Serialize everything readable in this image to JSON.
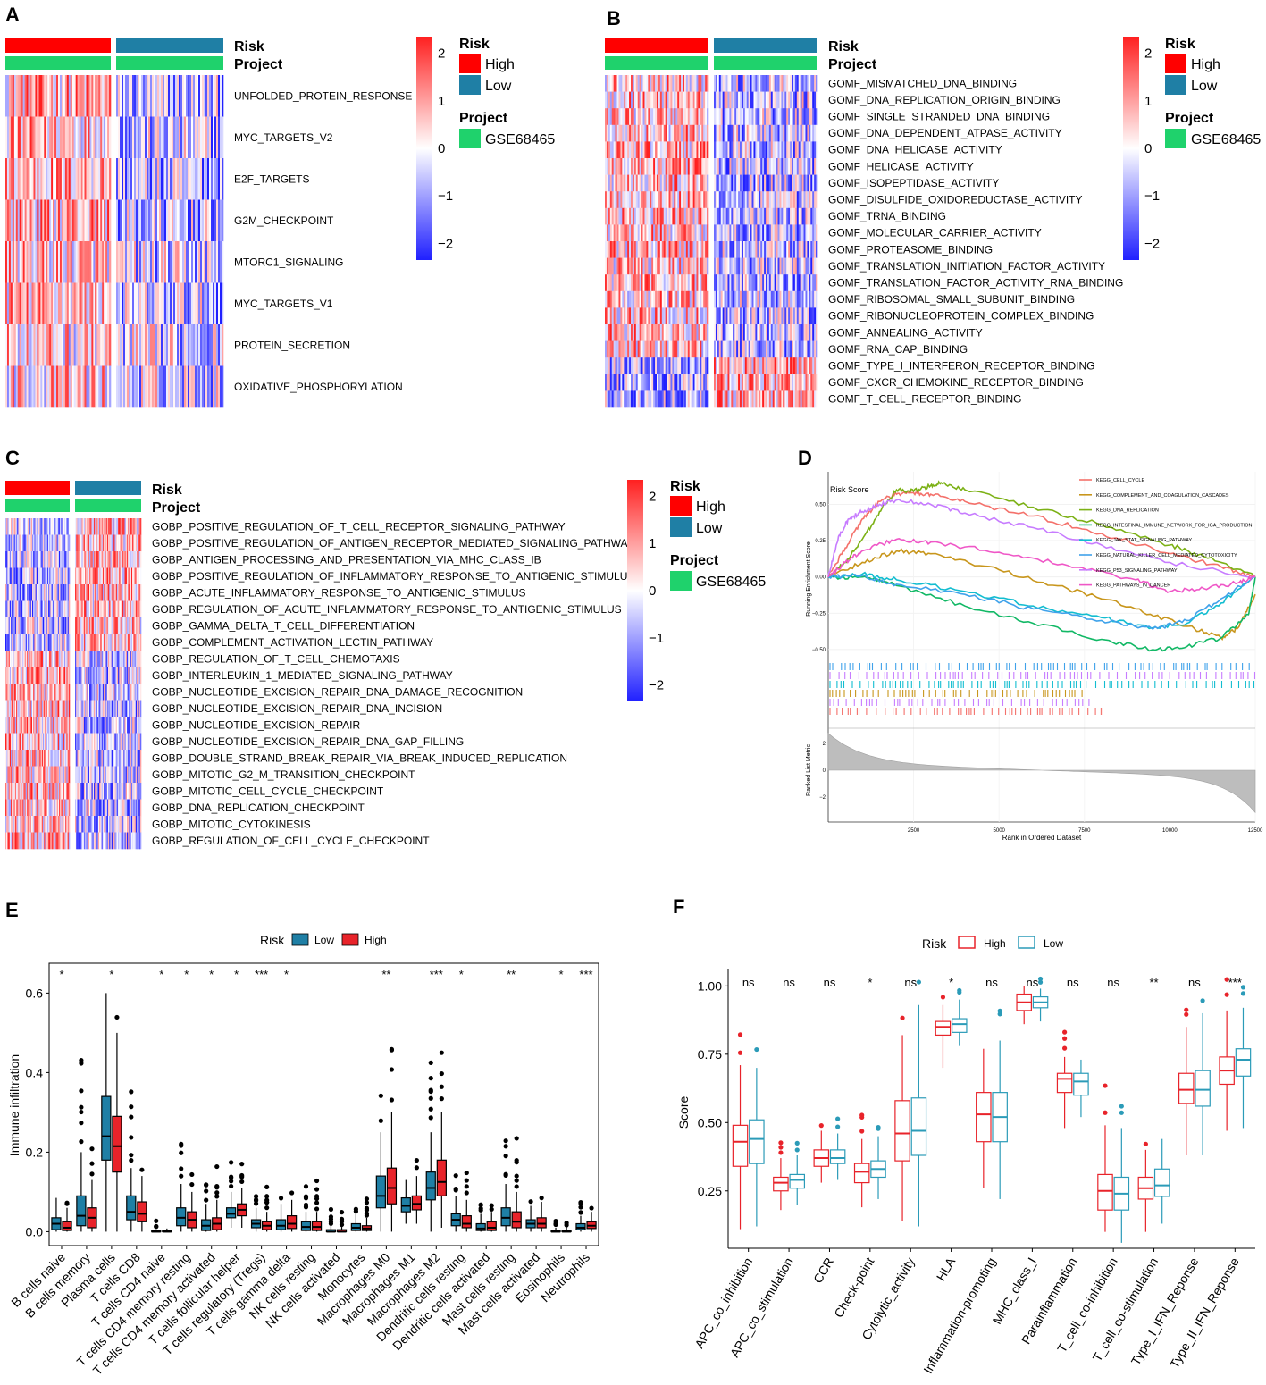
{
  "colors": {
    "high": "#ff0000",
    "low": "#1f7fa5",
    "project": "#1fd26c",
    "scale_high": "#ff2020",
    "scale_mid": "#ffffff",
    "scale_low": "#2020ff",
    "high_box": "#e8232a",
    "low_box": "#2b9bb8"
  },
  "legend": {
    "risk_title": "Risk",
    "high": "High",
    "low": "Low",
    "project_title": "Project",
    "project_value": "GSE68465"
  },
  "heat_scale_ticks": [
    "2",
    "1",
    "0",
    "−1",
    "−2"
  ],
  "panels": {
    "A": {
      "label": "A",
      "annotation_rows": [
        "Risk",
        "Project"
      ],
      "pathways": [
        "UNFOLDED_PROTEIN_RESPONSE",
        "MYC_TARGETS_V2",
        "E2F_TARGETS",
        "G2M_CHECKPOINT",
        "MTORC1_SIGNALING",
        "MYC_TARGETS_V1",
        "PROTEIN_SECRETION",
        "OXIDATIVE_PHOSPHORYLATION"
      ]
    },
    "B": {
      "label": "B",
      "annotation_rows": [
        "Risk",
        "Project"
      ],
      "pathways": [
        "GOMF_MISMATCHED_DNA_BINDING",
        "GOMF_DNA_REPLICATION_ORIGIN_BINDING",
        "GOMF_SINGLE_STRANDED_DNA_BINDING",
        "GOMF_DNA_DEPENDENT_ATPASE_ACTIVITY",
        "GOMF_DNA_HELICASE_ACTIVITY",
        "GOMF_HELICASE_ACTIVITY",
        "GOMF_ISOPEPTIDASE_ACTIVITY",
        "GOMF_DISULFIDE_OXIDOREDUCTASE_ACTIVITY",
        "GOMF_TRNA_BINDING",
        "GOMF_MOLECULAR_CARRIER_ACTIVITY",
        "GOMF_PROTEASOME_BINDING",
        "GOMF_TRANSLATION_INITIATION_FACTOR_ACTIVITY",
        "GOMF_TRANSLATION_FACTOR_ACTIVITY_RNA_BINDING",
        "GOMF_RIBOSOMAL_SMALL_SUBUNIT_BINDING",
        "GOMF_RIBONUCLEOPROTEIN_COMPLEX_BINDING",
        "GOMF_ANNEALING_ACTIVITY",
        "GOMF_RNA_CAP_BINDING",
        "GOMF_TYPE_I_INTERFERON_RECEPTOR_BINDING",
        "GOMF_CXCR_CHEMOKINE_RECEPTOR_BINDING",
        "GOMF_T_CELL_RECEPTOR_BINDING"
      ]
    },
    "C": {
      "label": "C",
      "annotation_rows": [
        "Risk",
        "Project"
      ],
      "pathways": [
        "GOBP_POSITIVE_REGULATION_OF_T_CELL_RECEPTOR_SIGNALING_PATHWAY",
        "GOBP_POSITIVE_REGULATION_OF_ANTIGEN_RECEPTOR_MEDIATED_SIGNALING_PATHWAY",
        "GOBP_ANTIGEN_PROCESSING_AND_PRESENTATION_VIA_MHC_CLASS_IB",
        "GOBP_POSITIVE_REGULATION_OF_INFLAMMATORY_RESPONSE_TO_ANTIGENIC_STIMULUS",
        "GOBP_ACUTE_INFLAMMATORY_RESPONSE_TO_ANTIGENIC_STIMULUS",
        "GOBP_REGULATION_OF_ACUTE_INFLAMMATORY_RESPONSE_TO_ANTIGENIC_STIMULUS",
        "GOBP_GAMMA_DELTA_T_CELL_DIFFERENTIATION",
        "GOBP_COMPLEMENT_ACTIVATION_LECTIN_PATHWAY",
        "GOBP_REGULATION_OF_T_CELL_CHEMOTAXIS",
        "GOBP_INTERLEUKIN_1_MEDIATED_SIGNALING_PATHWAY",
        "GOBP_NUCLEOTIDE_EXCISION_REPAIR_DNA_DAMAGE_RECOGNITION",
        "GOBP_NUCLEOTIDE_EXCISION_REPAIR_DNA_INCISION",
        "GOBP_NUCLEOTIDE_EXCISION_REPAIR",
        "GOBP_NUCLEOTIDE_EXCISION_REPAIR_DNA_GAP_FILLING",
        "GOBP_DOUBLE_STRAND_BREAK_REPAIR_VIA_BREAK_INDUCED_REPLICATION",
        "GOBP_MITOTIC_G2_M_TRANSITION_CHECKPOINT",
        "GOBP_MITOTIC_CELL_CYCLE_CHECKPOINT",
        "GOBP_DNA_REPLICATION_CHECKPOINT",
        "GOBP_MITOTIC_CYTOKINESIS",
        "GOBP_REGULATION_OF_CELL_CYCLE_CHECKPOINT"
      ]
    },
    "D": {
      "label": "D",
      "title": "Risk Score",
      "ylabel_top": "Running Enrichment Score",
      "ylabel_bottom": "Ranked List Metric",
      "xlabel": "Rank in Ordered Dataset",
      "es_ticks": [
        "0.50",
        "0.25",
        "0.00",
        "−0.25",
        "−0.50"
      ],
      "metric_ticks": [
        "2",
        "0",
        "−2"
      ],
      "x_ticks": [
        "2500",
        "5000",
        "7500",
        "10000",
        "12500"
      ]
    },
    "E": {
      "label": "E",
      "legend_title": "Risk",
      "legend_items": [
        "Low",
        "High"
      ],
      "ylabel": "Immune infiltration",
      "y_ticks": [
        "0.0",
        "0.2",
        "0.4",
        "0.6"
      ]
    },
    "F": {
      "label": "F",
      "legend_title": "Risk",
      "legend_items": [
        "High",
        "Low"
      ],
      "ylabel": "Score",
      "y_ticks": [
        "0.25",
        "0.50",
        "0.75",
        "1.00"
      ]
    }
  },
  "chart_data": [
    {
      "type": "line",
      "panel": "D",
      "title": "Risk Score",
      "xlabel": "Rank in Ordered Dataset",
      "ylabel": "Running Enrichment Score",
      "xlim": [
        0,
        12500
      ],
      "ylim": [
        -0.55,
        0.62
      ],
      "series": [
        {
          "name": "KEGG_CELL_CYCLE",
          "color": "#f4716b",
          "x": [
            0,
            500,
            1000,
            1500,
            2000,
            2500,
            3000,
            4000,
            6000,
            8000,
            10000,
            11500,
            12500
          ],
          "y": [
            0,
            0.2,
            0.4,
            0.52,
            0.57,
            0.58,
            0.57,
            0.52,
            0.42,
            0.3,
            0.16,
            0.07,
            0
          ]
        },
        {
          "name": "KEGG_COMPLEMENT_AND_COAGULATION_CASCADES",
          "color": "#c8961c",
          "x": [
            0,
            1000,
            2000,
            3000,
            5000,
            7000,
            9000,
            10500,
            11500,
            12000,
            12500
          ],
          "y": [
            0,
            0.1,
            0.18,
            0.16,
            0.05,
            -0.08,
            -0.22,
            -0.34,
            -0.42,
            -0.35,
            -0.12
          ]
        },
        {
          "name": "KEGG_DNA_REPLICATION",
          "color": "#7cb116",
          "x": [
            0,
            500,
            1000,
            1500,
            2000,
            2500,
            3000,
            3300,
            4000,
            6000,
            8000,
            10000,
            11000,
            12500
          ],
          "y": [
            0,
            0.1,
            0.26,
            0.45,
            0.6,
            0.59,
            0.63,
            0.65,
            0.6,
            0.48,
            0.36,
            0.22,
            0.14,
            0
          ]
        },
        {
          "name": "KEGG_INTESTINAL_IMMUNE_NETWORK_FOR_IGA_PRODUCTION",
          "color": "#11b865",
          "x": [
            0,
            1000,
            2000,
            4000,
            6000,
            8000,
            9500,
            10500,
            11500,
            12300,
            12500
          ],
          "y": [
            0,
            0.0,
            -0.06,
            -0.2,
            -0.32,
            -0.43,
            -0.5,
            -0.48,
            -0.42,
            -0.26,
            0
          ]
        },
        {
          "name": "KEGG_JAK_STAT_SIGNALING_PATHWAY",
          "color": "#12bdd0",
          "x": [
            0,
            1000,
            2000,
            4000,
            6000,
            8000,
            9500,
            10500,
            11500,
            12500
          ],
          "y": [
            0,
            0.02,
            -0.02,
            -0.1,
            -0.2,
            -0.28,
            -0.35,
            -0.32,
            -0.18,
            0
          ]
        },
        {
          "name": "KEGG_NATURAL_KILLER_CELL_MEDIATED_CYTOTOXICITY",
          "color": "#3fa2ea",
          "x": [
            0,
            1000,
            2000,
            4000,
            6000,
            8000,
            9500,
            10500,
            11500,
            12500
          ],
          "y": [
            0,
            0.01,
            -0.05,
            -0.12,
            -0.22,
            -0.3,
            -0.36,
            -0.3,
            -0.15,
            0
          ]
        },
        {
          "name": "KEGG_P53_SIGNALING_PATHWAY",
          "color": "#c77cff",
          "x": [
            0,
            300,
            600,
            1000,
            1500,
            2000,
            3000,
            4000,
            6000,
            8000,
            10000,
            12500
          ],
          "y": [
            0,
            0.28,
            0.4,
            0.45,
            0.5,
            0.53,
            0.5,
            0.44,
            0.34,
            0.22,
            0.1,
            0
          ]
        },
        {
          "name": "KEGG_PATHWAYS_IN_CANCER",
          "color": "#ef57c7",
          "x": [
            0,
            500,
            1000,
            2000,
            3000,
            5000,
            7000,
            9000,
            10000,
            11000,
            12000,
            12500
          ],
          "y": [
            0,
            0.1,
            0.18,
            0.26,
            0.24,
            0.17,
            0.08,
            -0.02,
            -0.1,
            -0.08,
            -0.04,
            0
          ]
        }
      ]
    },
    {
      "type": "box",
      "panel": "E",
      "ylabel": "Immune infiltration",
      "ylim": [
        0,
        0.65
      ],
      "groups": [
        "Low",
        "High"
      ],
      "categories": [
        "B cells naive",
        "B cells memory",
        "Plasma cells",
        "T cells CD8",
        "T cells CD4 naive",
        "T cells CD4 memory resting",
        "T cells CD4 memory activated",
        "T cells follicular helper",
        "T cells regulatory (Tregs)",
        "T cells gamma delta",
        "NK cells resting",
        "NK cells activated",
        "Monocytes",
        "Macrophages M0",
        "Macrophages M1",
        "Macrophages M2",
        "Dendritic cells resting",
        "Dendritic cells activated",
        "Mast cells resting",
        "Mast cells activated",
        "Eosinophils",
        "Neutrophils"
      ],
      "significance": [
        "*",
        "",
        "*",
        "",
        "*",
        "*",
        "*",
        "*",
        "***",
        "*",
        "",
        "",
        "",
        "**",
        "",
        "***",
        "*",
        "",
        "**",
        "",
        "*",
        "***"
      ],
      "low": [
        [
          0,
          0.005,
          0.02,
          0.035,
          0.085
        ],
        [
          0,
          0.015,
          0.04,
          0.09,
          0.2
        ],
        [
          0,
          0.18,
          0.24,
          0.34,
          0.6
        ],
        [
          0,
          0.03,
          0.05,
          0.09,
          0.16
        ],
        [
          0,
          0,
          0,
          0.002,
          0.005
        ],
        [
          0,
          0.015,
          0.035,
          0.06,
          0.12
        ],
        [
          0,
          0.003,
          0.015,
          0.03,
          0.07
        ],
        [
          0.01,
          0.035,
          0.045,
          0.06,
          0.1
        ],
        [
          0,
          0.01,
          0.02,
          0.03,
          0.06
        ],
        [
          0,
          0.005,
          0.015,
          0.03,
          0.07
        ],
        [
          0,
          0.003,
          0.012,
          0.025,
          0.05
        ],
        [
          0,
          0,
          0,
          0.005,
          0.015
        ],
        [
          0,
          0.003,
          0.01,
          0.02,
          0.045
        ],
        [
          0,
          0.06,
          0.09,
          0.14,
          0.25
        ],
        [
          0.02,
          0.05,
          0.065,
          0.085,
          0.13
        ],
        [
          0,
          0.08,
          0.11,
          0.15,
          0.25
        ],
        [
          0,
          0.015,
          0.03,
          0.045,
          0.09
        ],
        [
          0,
          0.003,
          0.008,
          0.02,
          0.045
        ],
        [
          0,
          0.015,
          0.035,
          0.06,
          0.12
        ],
        [
          0,
          0.01,
          0.02,
          0.03,
          0.065
        ],
        [
          0,
          0,
          0,
          0.002,
          0.01
        ],
        [
          0,
          0.005,
          0.01,
          0.02,
          0.04
        ]
      ],
      "high": [
        [
          0,
          0.003,
          0.01,
          0.025,
          0.06
        ],
        [
          0,
          0.01,
          0.035,
          0.06,
          0.13
        ],
        [
          0,
          0.15,
          0.215,
          0.29,
          0.5
        ],
        [
          0,
          0.025,
          0.045,
          0.075,
          0.14
        ],
        [
          0,
          0,
          0,
          0.003,
          0.008
        ],
        [
          0,
          0.01,
          0.03,
          0.05,
          0.1
        ],
        [
          0,
          0.005,
          0.02,
          0.035,
          0.08
        ],
        [
          0.01,
          0.04,
          0.055,
          0.07,
          0.11
        ],
        [
          0,
          0.005,
          0.015,
          0.025,
          0.05
        ],
        [
          0,
          0.008,
          0.02,
          0.04,
          0.08
        ],
        [
          0,
          0.003,
          0.012,
          0.025,
          0.05
        ],
        [
          0,
          0,
          0,
          0.005,
          0.012
        ],
        [
          0,
          0.003,
          0.008,
          0.015,
          0.035
        ],
        [
          0,
          0.07,
          0.11,
          0.16,
          0.3
        ],
        [
          0.02,
          0.055,
          0.07,
          0.09,
          0.14
        ],
        [
          0.01,
          0.09,
          0.125,
          0.18,
          0.3
        ],
        [
          0,
          0.01,
          0.02,
          0.04,
          0.08
        ],
        [
          0,
          0.003,
          0.01,
          0.025,
          0.05
        ],
        [
          0,
          0.01,
          0.025,
          0.05,
          0.1
        ],
        [
          0,
          0.01,
          0.02,
          0.035,
          0.075
        ],
        [
          0,
          0,
          0,
          0.003,
          0.012
        ],
        [
          0,
          0.008,
          0.015,
          0.025,
          0.05
        ]
      ]
    },
    {
      "type": "box",
      "panel": "F",
      "ylabel": "Score",
      "ylim": [
        0.05,
        1.02
      ],
      "groups": [
        "High",
        "Low"
      ],
      "categories": [
        "APC_co_inhibition",
        "APC_co_stimulation",
        "CCR",
        "Check-point",
        "Cytolytic_activity",
        "HLA",
        "Inflammation-promoting",
        "MHC_class_I",
        "Parainflammation",
        "T_cell_co-inhibition",
        "T_cell_co-stimulation",
        "Type_I_IFN_Reponse",
        "Type_II_IFN_Reponse"
      ],
      "significance": [
        "ns",
        "ns",
        "ns",
        "*",
        "ns",
        "*",
        "ns",
        "ns",
        "ns",
        "ns",
        "**",
        "ns",
        "***"
      ],
      "high": [
        [
          0.11,
          0.34,
          0.43,
          0.49,
          0.71
        ],
        [
          0.18,
          0.25,
          0.28,
          0.3,
          0.37
        ],
        [
          0.28,
          0.34,
          0.37,
          0.4,
          0.47
        ],
        [
          0.19,
          0.28,
          0.32,
          0.35,
          0.44
        ],
        [
          0.14,
          0.36,
          0.46,
          0.58,
          0.82
        ],
        [
          0.7,
          0.82,
          0.85,
          0.87,
          0.93
        ],
        [
          0.26,
          0.43,
          0.53,
          0.61,
          0.77
        ],
        [
          0.86,
          0.91,
          0.94,
          0.97,
          1.0
        ],
        [
          0.48,
          0.61,
          0.66,
          0.68,
          0.74
        ],
        [
          0.1,
          0.18,
          0.25,
          0.31,
          0.49
        ],
        [
          0.1,
          0.22,
          0.26,
          0.3,
          0.4
        ],
        [
          0.38,
          0.57,
          0.62,
          0.68,
          0.85
        ],
        [
          0.47,
          0.64,
          0.69,
          0.74,
          0.91
        ]
      ],
      "low": [
        [
          0.12,
          0.35,
          0.44,
          0.51,
          0.7
        ],
        [
          0.2,
          0.26,
          0.29,
          0.31,
          0.38
        ],
        [
          0.29,
          0.35,
          0.37,
          0.4,
          0.46
        ],
        [
          0.22,
          0.3,
          0.33,
          0.36,
          0.45
        ],
        [
          0.12,
          0.38,
          0.47,
          0.59,
          0.93
        ],
        [
          0.78,
          0.83,
          0.86,
          0.88,
          0.95
        ],
        [
          0.22,
          0.43,
          0.52,
          0.61,
          0.8
        ],
        [
          0.87,
          0.92,
          0.94,
          0.96,
          0.99
        ],
        [
          0.52,
          0.6,
          0.65,
          0.68,
          0.73
        ],
        [
          0.06,
          0.18,
          0.24,
          0.3,
          0.48
        ],
        [
          0.13,
          0.23,
          0.27,
          0.33,
          0.44
        ],
        [
          0.38,
          0.56,
          0.62,
          0.69,
          0.9
        ],
        [
          0.48,
          0.67,
          0.73,
          0.77,
          0.92
        ]
      ]
    }
  ]
}
